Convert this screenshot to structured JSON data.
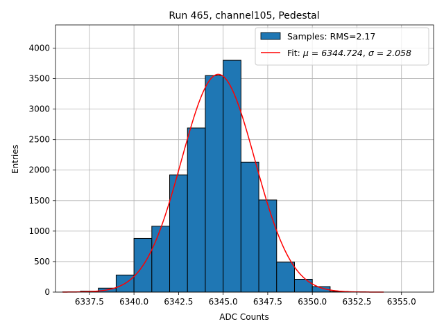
{
  "chart_data": {
    "type": "bar",
    "title": "Run 465, channel105, Pedestal",
    "xlabel": "ADC Counts",
    "ylabel": "Entries",
    "xlim": [
      6335.6,
      6356.8
    ],
    "ylim": [
      0,
      4380
    ],
    "xticks": [
      6337.5,
      6340.0,
      6342.5,
      6345.0,
      6347.5,
      6350.0,
      6352.5,
      6355.0
    ],
    "xtick_labels": [
      "6337.5",
      "6340.0",
      "6342.5",
      "6345.0",
      "6347.5",
      "6350.0",
      "6352.5",
      "6355.0"
    ],
    "yticks": [
      0,
      500,
      1000,
      1500,
      2000,
      2500,
      3000,
      3500,
      4000
    ],
    "ytick_labels": [
      "0",
      "500",
      "1000",
      "1500",
      "2000",
      "2500",
      "3000",
      "3500",
      "4000"
    ],
    "grid": true,
    "legend_position": "top-right",
    "histogram": {
      "name": "Samples: RMS=2.17",
      "color": "#1f77b4",
      "edge_color": "#000000",
      "bin_edges": [
        6336.0,
        6337.0,
        6338.0,
        6339.0,
        6340.0,
        6341.0,
        6342.0,
        6343.0,
        6344.0,
        6345.0,
        6346.0,
        6347.0,
        6348.0,
        6349.0,
        6350.0,
        6351.0,
        6352.0,
        6353.0,
        6354.0,
        6355.0,
        6356.0
      ],
      "counts": [
        2,
        15,
        65,
        280,
        880,
        1080,
        1920,
        2690,
        3550,
        3800,
        2130,
        1510,
        490,
        210,
        90,
        10,
        3,
        0,
        0,
        0
      ]
    },
    "fit": {
      "name": "Fit: μ = 6344.724, σ = 2.058",
      "name_prefix": "Fit: ",
      "mu_label": "μ = 6344.724",
      "sigma_label": "σ = 2.058",
      "color": "#ff0000",
      "mu": 6344.724,
      "sigma": 2.058,
      "amplitude": 3570,
      "x_range": [
        6336.0,
        6354.0
      ]
    }
  }
}
